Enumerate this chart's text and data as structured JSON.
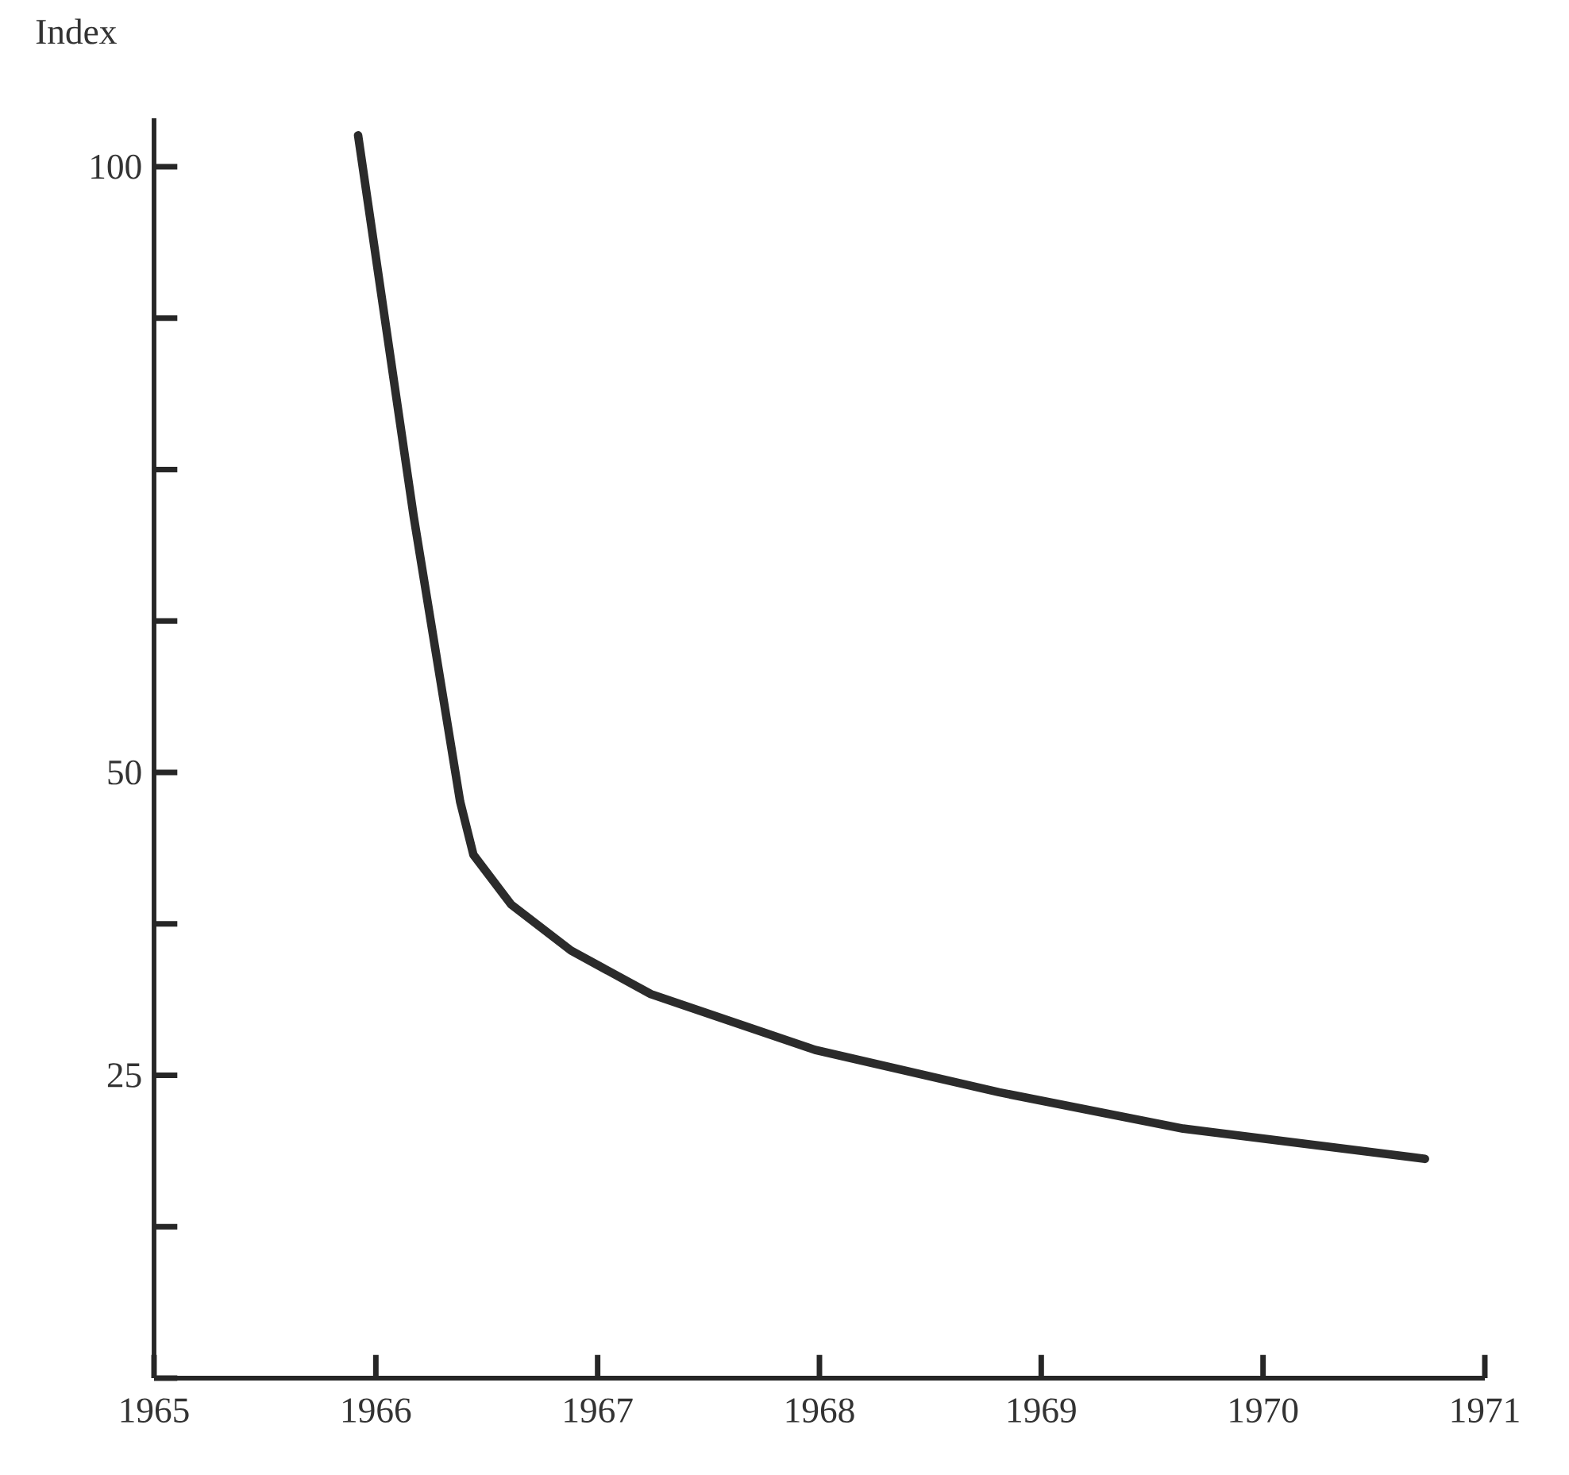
{
  "chart_data": {
    "type": "line",
    "ylabel": "Index",
    "x": [
      1965.92,
      1966.17,
      1966.38,
      1966.44,
      1966.61,
      1966.88,
      1967.24,
      1967.98,
      1968.81,
      1969.64,
      1970.73
    ],
    "series": [
      {
        "color": "#2b2b2b",
        "values": [
          102.6,
          71.2,
          47.6,
          43.2,
          39.1,
          35.3,
          31.7,
          27.1,
          23.6,
          20.6,
          18.1
        ]
      }
    ],
    "xlim": [
      1965,
      1971
    ],
    "xticks": [
      1965,
      1966,
      1967,
      1968,
      1969,
      1970,
      1971
    ],
    "ylim": [
      0,
      104
    ],
    "yticks": [
      {
        "value": 0,
        "label": null
      },
      {
        "value": 12.5,
        "label": null
      },
      25,
      {
        "value": 37.5,
        "label": null
      },
      50,
      {
        "value": 62.5,
        "label": null
      },
      {
        "value": 75,
        "label": null
      },
      {
        "value": 87.5,
        "label": null
      },
      100
    ],
    "grid": false,
    "marker": "none",
    "line_style": "solid"
  }
}
